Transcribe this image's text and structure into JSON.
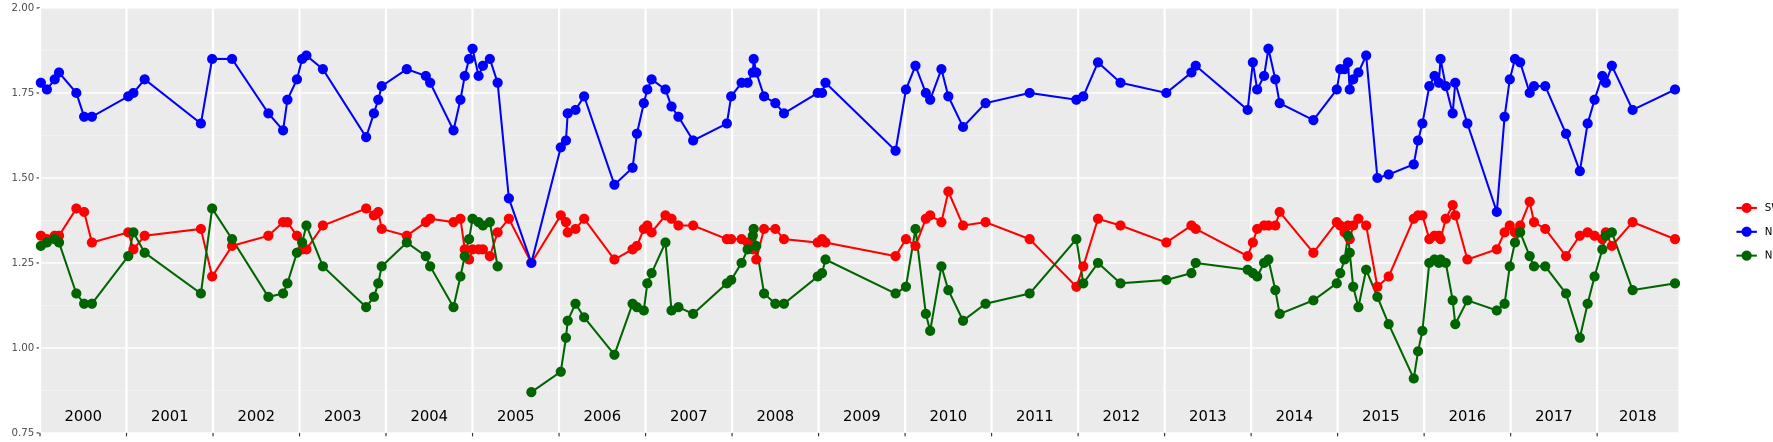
{
  "chart_data": {
    "type": "line",
    "x": [
      2000.01,
      2000.08,
      2000.17,
      2000.22,
      2000.42,
      2000.51,
      2000.6,
      2001.02,
      2001.08,
      2001.21,
      2001.86,
      2001.99,
      2002.22,
      2002.64,
      2002.81,
      2002.86,
      2002.97,
      2003.03,
      2003.08,
      2003.27,
      2003.77,
      2003.86,
      2003.91,
      2003.95,
      2004.24,
      2004.46,
      2004.51,
      2004.78,
      2004.86,
      2004.91,
      2004.96,
      2005.0,
      2005.07,
      2005.12,
      2005.2,
      2005.29,
      2005.42,
      2005.68,
      2006.02,
      2006.08,
      2006.1,
      2006.19,
      2006.29,
      2006.64,
      2006.85,
      2006.9,
      2006.98,
      2007.02,
      2007.07,
      2007.23,
      2007.3,
      2007.38,
      2007.55,
      2007.94,
      2007.99,
      2008.11,
      2008.18,
      2008.24,
      2008.25,
      2008.28,
      2008.37,
      2008.5,
      2008.6,
      2008.99,
      2009.04,
      2009.08,
      2009.89,
      2010.01,
      2010.12,
      2010.24,
      2010.29,
      2010.42,
      2010.5,
      2010.67,
      2010.93,
      2011.44,
      2011.98,
      2012.06,
      2012.23,
      2012.49,
      2013.02,
      2013.31,
      2013.36,
      2013.96,
      2014.02,
      2014.07,
      2014.15,
      2014.2,
      2014.28,
      2014.33,
      2014.72,
      2014.99,
      2015.03,
      2015.08,
      2015.12,
      2015.14,
      2015.18,
      2015.24,
      2015.33,
      2015.46,
      2015.59,
      2015.88,
      2015.93,
      2015.98,
      2016.06,
      2016.12,
      2016.17,
      2016.19,
      2016.25,
      2016.33,
      2016.36,
      2016.5,
      2016.84,
      2016.93,
      2016.99,
      2017.05,
      2017.11,
      2017.22,
      2017.27,
      2017.4,
      2017.64,
      2017.8,
      2017.89,
      2017.97,
      2018.06,
      2018.1,
      2018.17,
      2018.41,
      2018.9
    ],
    "series": [
      {
        "name": "SWIR",
        "color": "#ff0000",
        "values": [
          1.33,
          1.32,
          1.33,
          1.33,
          1.41,
          1.4,
          1.31,
          1.34,
          1.29,
          1.33,
          1.35,
          1.21,
          1.3,
          1.33,
          1.37,
          1.37,
          1.33,
          1.29,
          1.29,
          1.36,
          1.41,
          1.39,
          1.4,
          1.35,
          1.33,
          1.37,
          1.38,
          1.37,
          1.38,
          1.29,
          1.26,
          1.29,
          1.29,
          1.29,
          1.27,
          1.34,
          1.38,
          1.25,
          1.39,
          1.37,
          1.34,
          1.35,
          1.38,
          1.26,
          1.29,
          1.3,
          1.35,
          1.36,
          1.34,
          1.39,
          1.38,
          1.36,
          1.36,
          1.32,
          1.32,
          1.32,
          1.31,
          1.29,
          1.35,
          1.26,
          1.35,
          1.35,
          1.32,
          1.31,
          1.32,
          1.31,
          1.27,
          1.32,
          1.3,
          1.38,
          1.39,
          1.37,
          1.46,
          1.36,
          1.37,
          1.32,
          1.18,
          1.24,
          1.38,
          1.36,
          1.31,
          1.36,
          1.35,
          1.27,
          1.31,
          1.35,
          1.36,
          1.36,
          1.36,
          1.4,
          1.28,
          1.37,
          1.36,
          1.34,
          1.36,
          1.32,
          1.36,
          1.38,
          1.36,
          1.18,
          1.21,
          1.38,
          1.39,
          1.39,
          1.32,
          1.33,
          1.33,
          1.32,
          1.38,
          1.42,
          1.39,
          1.26,
          1.29,
          1.34,
          1.36,
          1.34,
          1.36,
          1.43,
          1.37,
          1.35,
          1.27,
          1.33,
          1.34,
          1.33,
          1.32,
          1.34,
          1.3,
          1.37,
          1.32
        ]
      },
      {
        "name": "NDVI",
        "color": "#0000ff",
        "values": [
          1.78,
          1.76,
          1.79,
          1.81,
          1.75,
          1.68,
          1.68,
          1.74,
          1.75,
          1.79,
          1.66,
          1.85,
          1.85,
          1.69,
          1.64,
          1.73,
          1.79,
          1.85,
          1.86,
          1.82,
          1.62,
          1.69,
          1.73,
          1.77,
          1.82,
          1.8,
          1.78,
          1.64,
          1.73,
          1.8,
          1.85,
          1.88,
          1.8,
          1.83,
          1.85,
          1.78,
          1.44,
          1.25,
          1.59,
          1.61,
          1.69,
          1.7,
          1.74,
          1.48,
          1.53,
          1.63,
          1.72,
          1.76,
          1.79,
          1.76,
          1.71,
          1.68,
          1.61,
          1.66,
          1.74,
          1.78,
          1.78,
          1.81,
          1.85,
          1.81,
          1.74,
          1.72,
          1.69,
          1.75,
          1.75,
          1.78,
          1.58,
          1.76,
          1.83,
          1.75,
          1.73,
          1.82,
          1.74,
          1.65,
          1.72,
          1.75,
          1.73,
          1.74,
          1.84,
          1.78,
          1.75,
          1.81,
          1.83,
          1.7,
          1.84,
          1.76,
          1.8,
          1.88,
          1.79,
          1.72,
          1.67,
          1.76,
          1.82,
          1.82,
          1.84,
          1.76,
          1.79,
          1.81,
          1.86,
          1.5,
          1.51,
          1.54,
          1.61,
          1.66,
          1.77,
          1.8,
          1.78,
          1.85,
          1.77,
          1.69,
          1.78,
          1.66,
          1.4,
          1.68,
          1.79,
          1.85,
          1.84,
          1.75,
          1.77,
          1.77,
          1.63,
          1.52,
          1.66,
          1.73,
          1.8,
          1.78,
          1.83,
          1.7,
          1.76
        ]
      },
      {
        "name": "NDWI",
        "color": "#006400",
        "values": [
          1.3,
          1.31,
          1.32,
          1.31,
          1.16,
          1.13,
          1.13,
          1.27,
          1.34,
          1.28,
          1.16,
          1.41,
          1.32,
          1.15,
          1.16,
          1.19,
          1.28,
          1.31,
          1.36,
          1.24,
          1.12,
          1.15,
          1.19,
          1.24,
          1.31,
          1.27,
          1.24,
          1.12,
          1.21,
          1.27,
          1.32,
          1.38,
          1.37,
          1.36,
          1.37,
          1.24,
          null,
          0.87,
          0.93,
          1.03,
          1.08,
          1.13,
          1.09,
          0.98,
          1.13,
          1.12,
          1.11,
          1.19,
          1.22,
          1.31,
          1.11,
          1.12,
          1.1,
          1.19,
          1.2,
          1.25,
          1.29,
          1.33,
          1.35,
          1.3,
          1.16,
          1.13,
          1.13,
          1.21,
          1.22,
          1.26,
          1.16,
          1.18,
          1.35,
          1.1,
          1.05,
          1.24,
          1.17,
          1.08,
          1.13,
          1.16,
          1.32,
          1.19,
          1.25,
          1.19,
          1.2,
          1.22,
          1.25,
          1.23,
          1.22,
          1.21,
          1.25,
          1.26,
          1.17,
          1.1,
          1.14,
          1.19,
          1.22,
          1.26,
          1.33,
          1.28,
          1.18,
          1.12,
          1.23,
          1.15,
          1.07,
          0.91,
          0.99,
          1.05,
          1.25,
          1.26,
          1.25,
          1.26,
          1.25,
          1.14,
          1.07,
          1.14,
          1.11,
          1.13,
          1.24,
          1.31,
          1.34,
          1.27,
          1.24,
          1.24,
          1.16,
          1.03,
          1.13,
          1.21,
          1.29,
          1.33,
          1.34,
          1.17,
          1.19
        ]
      }
    ],
    "xlim": [
      2000,
      2018.94
    ],
    "xticks": [
      2000,
      2001,
      2002,
      2003,
      2004,
      2005,
      2006,
      2007,
      2008,
      2009,
      2010,
      2011,
      2012,
      2013,
      2014,
      2015,
      2016,
      2017,
      2018
    ],
    "ylim": [
      0.75,
      2.0
    ],
    "yticks": [
      0.75,
      {
        "value": 1.0,
        "label": "1.00"
      },
      1.25,
      {
        "value": 1.5,
        "label": "1.50"
      },
      1.75,
      {
        "value": 2.0,
        "label": "2.00"
      }
    ],
    "grid": true,
    "legend": "right"
  }
}
